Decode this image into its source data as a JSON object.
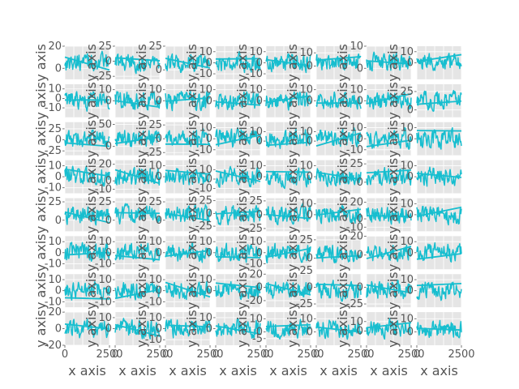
{
  "chart_data": {
    "type": "line",
    "grid_rows": 8,
    "grid_cols": 8,
    "xlabel": "x axis",
    "ylabel": "y axis",
    "series_color": "#17becf",
    "background_color": "#e5e5e5",
    "grid": true,
    "xlim": [
      0,
      2500
    ],
    "x_ticks": [
      "0",
      "2500"
    ],
    "subplot_ylims": [
      [
        [
          -10,
          20
        ],
        [
          -30,
          25
        ],
        [
          -10,
          25
        ],
        [
          -15,
          15
        ],
        [
          -15,
          15
        ],
        [
          -10,
          15
        ],
        [
          -5,
          10
        ],
        [
          -15,
          15
        ]
      ],
      [
        [
          -20,
          15
        ],
        [
          -15,
          15
        ],
        [
          -15,
          15
        ],
        [
          -15,
          15
        ],
        [
          -15,
          15
        ],
        [
          -15,
          15
        ],
        [
          -15,
          15
        ],
        [
          -10,
          35
        ]
      ],
      [
        [
          -35,
          40
        ],
        [
          -20,
          55
        ],
        [
          -30,
          30
        ],
        [
          -15,
          15
        ],
        [
          -15,
          20
        ],
        [
          -15,
          20
        ],
        [
          -15,
          15
        ],
        [
          -15,
          15
        ]
      ],
      [
        [
          -15,
          15
        ],
        [
          -15,
          25
        ],
        [
          -15,
          15
        ],
        [
          -15,
          20
        ],
        [
          -15,
          15
        ],
        [
          -15,
          15
        ],
        [
          -15,
          30
        ],
        [
          -15,
          15
        ]
      ],
      [
        [
          -15,
          30
        ],
        [
          -15,
          30
        ],
        [
          -15,
          30
        ],
        [
          -35,
          30
        ],
        [
          -30,
          30
        ],
        [
          -15,
          15
        ],
        [
          -15,
          25
        ],
        [
          -15,
          15
        ]
      ],
      [
        [
          -15,
          15
        ],
        [
          -15,
          15
        ],
        [
          -15,
          15
        ],
        [
          -15,
          15
        ],
        [
          -15,
          15
        ],
        [
          -15,
          30
        ],
        [
          -15,
          20
        ],
        [
          -15,
          15
        ]
      ],
      [
        [
          -15,
          15
        ],
        [
          -15,
          15
        ],
        [
          -15,
          15
        ],
        [
          -15,
          15
        ],
        [
          -30,
          20
        ],
        [
          -30,
          20
        ],
        [
          -30,
          20
        ],
        [
          -15,
          15
        ]
      ],
      [
        [
          -20,
          20
        ],
        [
          -15,
          15
        ],
        [
          -15,
          15
        ],
        [
          -15,
          15
        ],
        [
          -10,
          15
        ],
        [
          -10,
          15
        ],
        [
          -15,
          20
        ],
        [
          -10,
          15
        ]
      ]
    ],
    "subplot_yticks": [
      [
        [
          "20",
          "0"
        ],
        [
          "25",
          "0",
          "-25"
        ],
        [
          "25",
          "0"
        ],
        [
          "10",
          "0",
          "-10"
        ],
        [
          "10",
          "0",
          "-10"
        ],
        [
          "10",
          "0"
        ],
        [
          "10",
          "0"
        ],
        [
          "10",
          "0"
        ]
      ],
      [
        [
          "10",
          "0",
          "-10"
        ],
        [
          "10",
          "0"
        ],
        [
          "10",
          "0"
        ],
        [
          "10",
          "0"
        ],
        [
          "10",
          "0"
        ],
        [
          "10",
          "0"
        ],
        [
          "10",
          "0"
        ],
        [
          "25",
          "0"
        ]
      ],
      [
        [
          "25",
          "0",
          "-25"
        ],
        [
          "50",
          "0"
        ],
        [
          "25",
          "0",
          "-25"
        ],
        [
          "10",
          "0",
          "-10"
        ],
        [
          "10",
          "0"
        ],
        [
          "10",
          "0"
        ],
        [
          "10",
          "0",
          "-10"
        ],
        [
          "10",
          "0"
        ]
      ],
      [
        [
          "10",
          "0",
          "-10"
        ],
        [
          "20",
          "0",
          "-10"
        ],
        [
          "10",
          "0"
        ],
        [
          "10",
          "0",
          "-10"
        ],
        [
          "10",
          "0"
        ],
        [
          "10",
          "0"
        ],
        [
          "25",
          "0"
        ],
        [
          "10",
          "0"
        ]
      ],
      [
        [
          "25",
          "0"
        ],
        [
          "25",
          "0"
        ],
        [
          "25",
          "0"
        ],
        [
          "25",
          "0",
          "-25"
        ],
        [
          "25",
          "0",
          "-25"
        ],
        [
          "10",
          "0"
        ],
        [
          "20",
          "0",
          "-10"
        ],
        [
          "10",
          "0"
        ]
      ],
      [
        [
          "10",
          "0",
          "-10"
        ],
        [
          "10",
          "0",
          "-10"
        ],
        [
          "10",
          "0"
        ],
        [
          "10",
          "0"
        ],
        [
          "10",
          "0",
          "-10"
        ],
        [
          "25",
          "0"
        ],
        [
          "20",
          "0"
        ],
        [
          "10",
          "0"
        ]
      ],
      [
        [
          "10",
          "0",
          "-10"
        ],
        [
          "10",
          "0",
          "-10"
        ],
        [
          "10",
          "0",
          "-10"
        ],
        [
          "10",
          "0"
        ],
        [
          "20",
          "0",
          "-20"
        ],
        [
          "25",
          "0",
          "-25"
        ],
        [
          "0",
          "-25"
        ],
        [
          "10",
          "0"
        ]
      ],
      [
        [
          "20",
          "0",
          "-20"
        ],
        [
          "10",
          "0"
        ],
        [
          "10",
          "0",
          "-10"
        ],
        [
          "10",
          "0"
        ],
        [
          "10",
          "0",
          "-5"
        ],
        [
          "10",
          "0"
        ],
        [
          "10",
          "0"
        ],
        [
          "10",
          "0"
        ]
      ]
    ]
  }
}
